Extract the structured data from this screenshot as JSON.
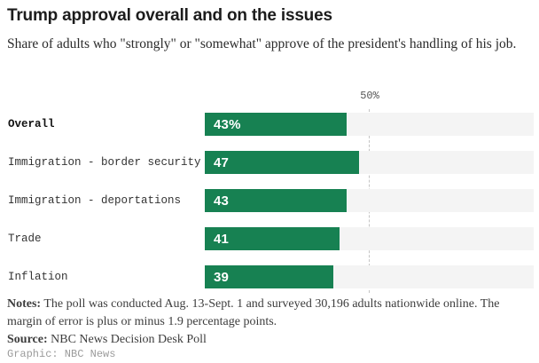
{
  "header": {
    "title": "Trump approval overall and on the issues",
    "subtitle": "Share of adults who \"strongly\" or \"somewhat\" approve of the president's handling of his job."
  },
  "chart_data": {
    "type": "bar",
    "orientation": "horizontal",
    "categories": [
      "Overall",
      "Immigration - border security",
      "Immigration - deportations",
      "Trade",
      "Inflation"
    ],
    "values": [
      43,
      47,
      43,
      41,
      39
    ],
    "value_labels": [
      "43%",
      "47",
      "43",
      "41",
      "39"
    ],
    "bold_labels": [
      true,
      false,
      false,
      false,
      false
    ],
    "xlim": [
      0,
      100
    ],
    "reference_line": {
      "value": 50,
      "label": "50%"
    },
    "bar_color": "#178152",
    "track_color": "#f4f4f4",
    "grid": "single dashed vertical reference line at 50%",
    "legend": "none"
  },
  "footer": {
    "notes_label": "Notes:",
    "notes_text": " The poll was conducted Aug. 13-Sept. 1 and surveyed 30,196 adults nationwide online. The margin of error is plus or minus 1.9 percentage points.",
    "source_label": "Source:",
    "source_text": " NBC News Decision Desk Poll",
    "credit": "Graphic: NBC News"
  }
}
